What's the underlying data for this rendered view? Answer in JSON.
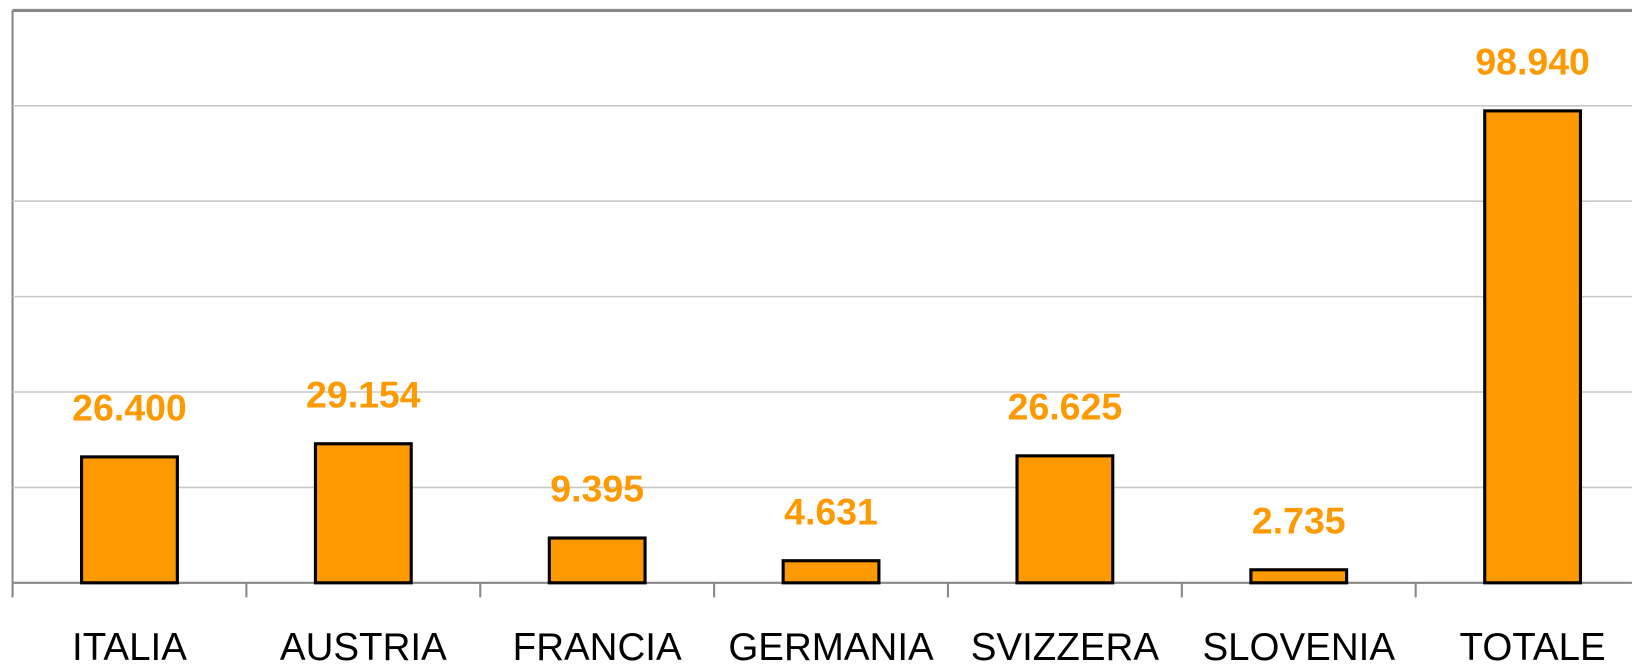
{
  "chart_data": {
    "type": "bar",
    "categories": [
      "ITALIA",
      "AUSTRIA",
      "FRANCIA",
      "GERMANIA",
      "SVIZZERA",
      "SLOVENIA",
      "TOTALE"
    ],
    "values": [
      26400,
      29154,
      9395,
      4631,
      26625,
      2735,
      98940
    ],
    "value_labels": [
      "26.400",
      "29.154",
      "9.395",
      "4.631",
      "26.625",
      "2.735",
      "98.940"
    ],
    "color": "#ff9900",
    "ylim": [
      0,
      120000
    ],
    "yticks": [
      0,
      20000,
      40000,
      60000,
      80000,
      100000,
      120000
    ],
    "grid": true
  }
}
